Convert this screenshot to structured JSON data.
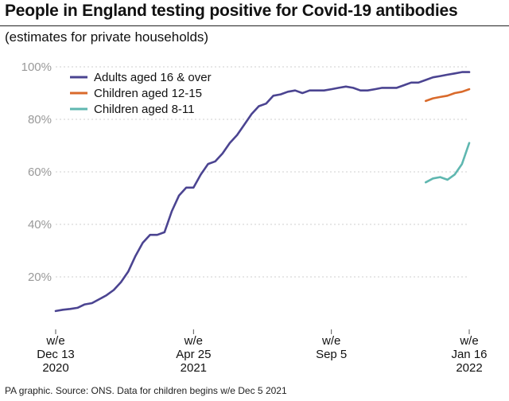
{
  "header": {
    "title": "People in England testing positive for Covid-19 antibodies",
    "subtitle": "(estimates for private households)"
  },
  "footer": {
    "source": "PA graphic. Source: ONS. Data for children begins w/e Dec 5 2021"
  },
  "chart_data": {
    "type": "line",
    "title": "People in England testing positive for Covid-19 antibodies",
    "subtitle": "(estimates for private households)",
    "xlabel": "",
    "ylabel": "",
    "ylim": [
      0,
      100
    ],
    "grid": true,
    "legend_position": "top-left",
    "y_ticks": [
      {
        "value": 20,
        "label": "20%"
      },
      {
        "value": 40,
        "label": "40%"
      },
      {
        "value": 60,
        "label": "60%"
      },
      {
        "value": 80,
        "label": "80%"
      },
      {
        "value": 100,
        "label": "100%"
      }
    ],
    "x_ticks": [
      {
        "week": 0,
        "lines": [
          "w/e",
          "Dec 13",
          "2020"
        ]
      },
      {
        "week": 19,
        "lines": [
          "w/e",
          "Apr 25",
          "2021"
        ]
      },
      {
        "week": 38,
        "lines": [
          "w/e",
          "Sep 5",
          ""
        ]
      },
      {
        "week": 57,
        "lines": [
          "w/e",
          "Jan 16",
          "2022"
        ]
      }
    ],
    "x_range_weeks": [
      0,
      57
    ],
    "series": [
      {
        "name": "Adults aged 16 & over",
        "color": "#4b4491",
        "start_week": 0,
        "values": [
          7,
          7.5,
          7.8,
          8.2,
          9.5,
          10,
          11.5,
          13,
          15,
          18,
          22,
          28,
          33,
          36,
          36,
          37,
          45,
          51,
          54,
          54,
          59,
          63,
          64,
          67,
          71,
          74,
          78,
          82,
          85,
          86,
          89,
          89.5,
          90.5,
          91,
          90,
          91,
          91,
          91,
          91.5,
          92,
          92.5,
          92,
          91,
          91,
          91.5,
          92,
          92,
          92,
          93,
          94,
          94,
          95,
          96,
          96.5,
          97,
          97.5,
          98,
          98
        ]
      },
      {
        "name": "Children aged 12-15",
        "color": "#d96a2b",
        "start_week": 51,
        "values": [
          87,
          88,
          88.5,
          89,
          90,
          90.5,
          91.5
        ]
      },
      {
        "name": "Children aged 8-11",
        "color": "#5fb7b0",
        "start_week": 51,
        "values": [
          56,
          57.5,
          58,
          57,
          59,
          63,
          71
        ]
      }
    ]
  }
}
